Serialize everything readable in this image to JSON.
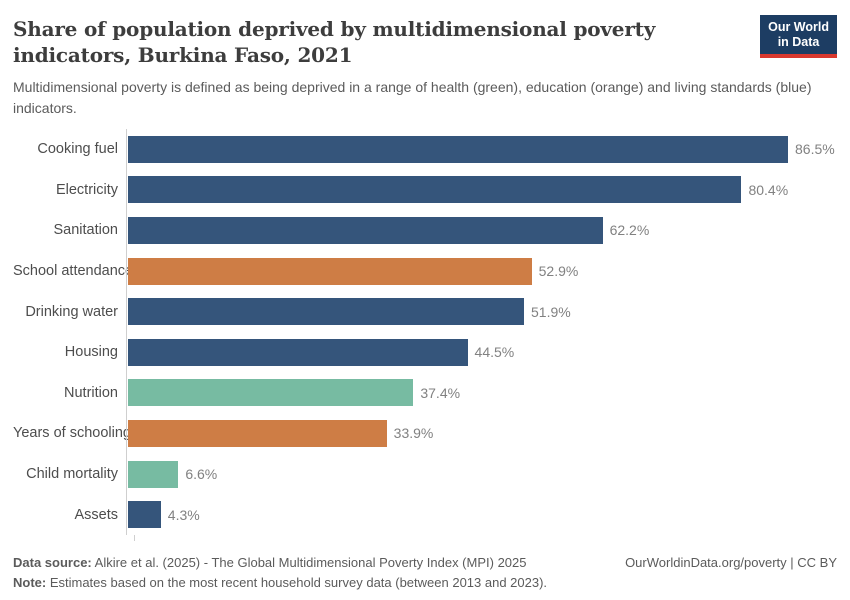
{
  "header": {
    "title": "Share of population deprived by multidimensional poverty indicators, Burkina Faso, 2021",
    "subtitle": "Multidimensional poverty is defined as being deprived in a range of health (green), education (orange) and living standards (blue) indicators.",
    "logo": {
      "line1": "Our World",
      "line2": "in Data"
    }
  },
  "chart_data": {
    "type": "bar",
    "orientation": "horizontal",
    "unit": "%",
    "title": "Share of population deprived by multidimensional poverty indicators, Burkina Faso, 2021",
    "categories": [
      "Cooking fuel",
      "Electricity",
      "Sanitation",
      "School attendance",
      "Drinking water",
      "Housing",
      "Nutrition",
      "Years of schooling",
      "Child mortality",
      "Assets"
    ],
    "values": [
      86.5,
      80.4,
      62.2,
      52.9,
      51.9,
      44.5,
      37.4,
      33.9,
      6.6,
      4.3
    ],
    "value_labels": [
      "86.5%",
      "80.4%",
      "62.2%",
      "52.9%",
      "51.9%",
      "44.5%",
      "37.4%",
      "33.9%",
      "6.6%",
      "4.3%"
    ],
    "bar_colors": [
      "blue",
      "blue",
      "blue",
      "orange",
      "blue",
      "blue",
      "green",
      "orange",
      "green",
      "blue"
    ],
    "color_meaning": {
      "green": "health",
      "orange": "education",
      "blue": "living standards"
    },
    "x_range": [
      0,
      86.5
    ],
    "grid": false,
    "legend": "none"
  },
  "colors": {
    "blue": "#35557b",
    "orange": "#ce7d45",
    "green": "#77bba2",
    "logo_navy": "#1d3d63",
    "logo_red": "#d9382e"
  },
  "footer": {
    "datasource_label": "Data source:",
    "datasource_text": " Alkire et al. (2025) - The Global Multidimensional Poverty Index (MPI) 2025",
    "note_label": "Note:",
    "note_text": " Estimates based on the most recent household survey data (between 2013 and 2023).",
    "link": "OurWorldinData.org/poverty | CC BY"
  }
}
